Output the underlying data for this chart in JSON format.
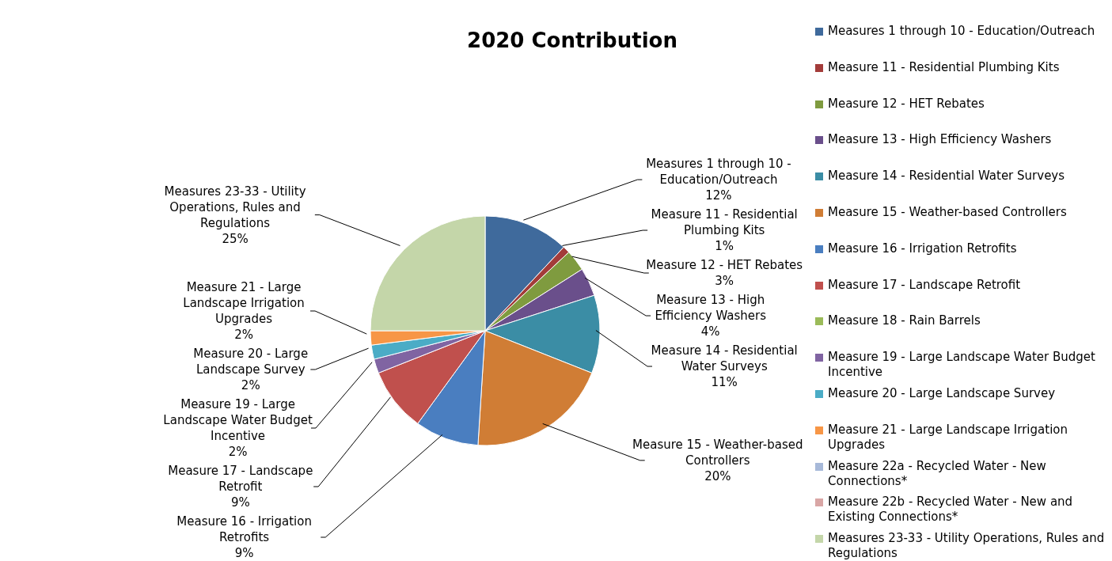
{
  "chart_data": {
    "type": "pie",
    "title": "2020 Contribution",
    "categories": [
      "Measures 1 through 10 - Education/Outreach",
      "Measure 11 - Residential Plumbing Kits",
      "Measure 12 - HET Rebates",
      "Measure 13 - High Efficiency Washers",
      "Measure 14 - Residential Water Surveys",
      "Measure 15 - Weather-based Controllers",
      "Measure 16 - Irrigation Retrofits",
      "Measure 17 - Landscape Retrofit",
      "Measure 18 - Rain Barrels",
      "Measure 19 - Large Landscape Water Budget Incentive",
      "Measure 20 - Large Landscape Survey",
      "Measure 21 - Large Landscape Irrigation Upgrades",
      "Measure 22a - Recycled Water - New Connections*",
      "Measure 22b - Recycled Water - New and Existing Connections*",
      "Measures 23-33 - Utility Operations, Rules and Regulations"
    ],
    "values": [
      12,
      1,
      3,
      4,
      11,
      20,
      9,
      9,
      0,
      2,
      2,
      2,
      0,
      0,
      25
    ],
    "colors": [
      "#3f6a9c",
      "#a33c3a",
      "#7f9b3f",
      "#6a4f8b",
      "#3b8da5",
      "#d07d35",
      "#4a7ec0",
      "#c0504d",
      "#9bbb59",
      "#8064a2",
      "#4bacc6",
      "#f79646",
      "#a7b9d9",
      "#d9a6a5",
      "#c4d6a9"
    ],
    "value_labels": [
      "12%",
      "1%",
      "3%",
      "4%",
      "11%",
      "20%",
      "9%",
      "9%",
      null,
      "2%",
      "2%",
      "2%",
      null,
      null,
      "25%"
    ],
    "legend": "right"
  }
}
